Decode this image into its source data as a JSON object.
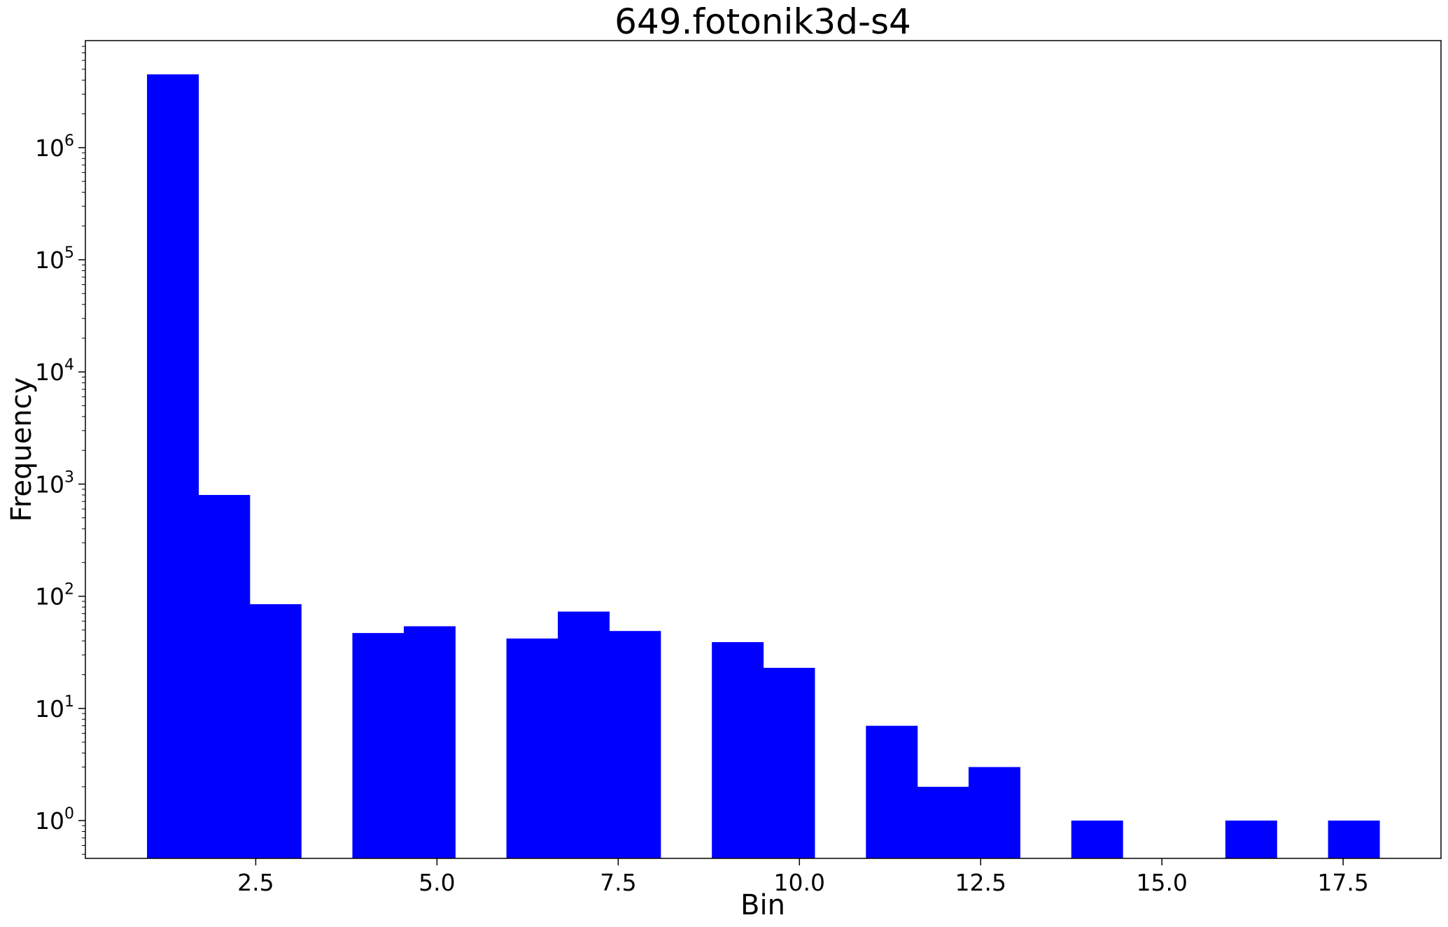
{
  "chart_data": {
    "type": "bar",
    "title": "649.fotonik3d-s4",
    "xlabel": "Bin",
    "ylabel": "Frequency",
    "y_scale": "log",
    "xlim": [
      0.15,
      18.85
    ],
    "ylim": [
      0.46,
      9000000
    ],
    "grid": false,
    "bar_color": "#0000ff",
    "bin_width": 0.7083,
    "x_ticks": [
      2.5,
      5.0,
      7.5,
      10.0,
      12.5,
      15.0,
      17.5
    ],
    "x_tick_labels": [
      "2.5",
      "5.0",
      "7.5",
      "10.0",
      "12.5",
      "15.0",
      "17.5"
    ],
    "y_ticks": [
      1,
      10,
      100,
      1000,
      10000,
      100000,
      1000000
    ],
    "y_tick_labels": [
      {
        "base": "10",
        "exp": "0"
      },
      {
        "base": "10",
        "exp": "1"
      },
      {
        "base": "10",
        "exp": "2"
      },
      {
        "base": "10",
        "exp": "3"
      },
      {
        "base": "10",
        "exp": "4"
      },
      {
        "base": "10",
        "exp": "5"
      },
      {
        "base": "10",
        "exp": "6"
      }
    ],
    "bins": [
      {
        "start": 1.0,
        "value": 4500000
      },
      {
        "start": 1.708,
        "value": 800
      },
      {
        "start": 2.417,
        "value": 85
      },
      {
        "start": 3.125,
        "value": 0
      },
      {
        "start": 3.833,
        "value": 47
      },
      {
        "start": 4.542,
        "value": 54
      },
      {
        "start": 5.25,
        "value": 0
      },
      {
        "start": 5.958,
        "value": 42
      },
      {
        "start": 6.667,
        "value": 73
      },
      {
        "start": 7.375,
        "value": 49
      },
      {
        "start": 8.083,
        "value": 0
      },
      {
        "start": 8.792,
        "value": 39
      },
      {
        "start": 9.5,
        "value": 23
      },
      {
        "start": 10.208,
        "value": 0
      },
      {
        "start": 10.917,
        "value": 7
      },
      {
        "start": 11.625,
        "value": 2
      },
      {
        "start": 12.333,
        "value": 3
      },
      {
        "start": 13.042,
        "value": 0
      },
      {
        "start": 13.75,
        "value": 1
      },
      {
        "start": 14.458,
        "value": 0
      },
      {
        "start": 15.167,
        "value": 0
      },
      {
        "start": 15.875,
        "value": 1
      },
      {
        "start": 16.583,
        "value": 0
      },
      {
        "start": 17.292,
        "value": 1
      }
    ]
  }
}
